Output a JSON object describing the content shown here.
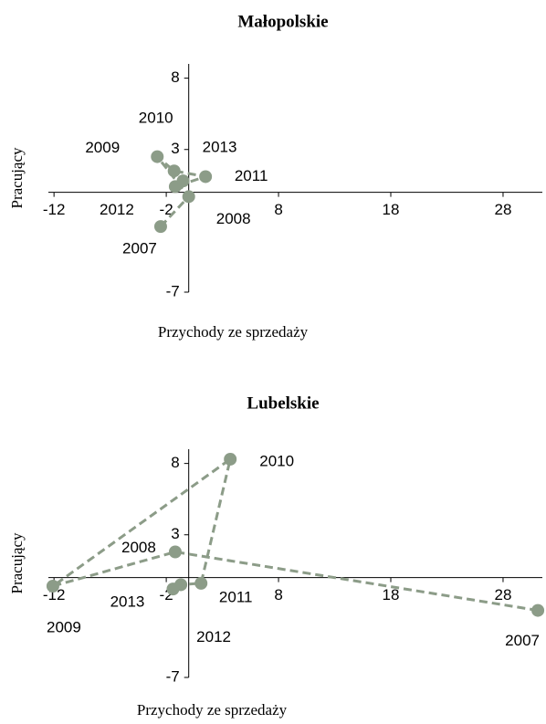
{
  "chart_data": [
    {
      "type": "scatter",
      "title": "Małopolskie",
      "x_label": "Przychody ze sprzedaży",
      "y_label": "Pracujący",
      "labels": [
        "2007",
        "2008",
        "2009",
        "2010",
        "2011",
        "2012",
        "2013"
      ],
      "x": [
        -2.5,
        0,
        -2.8,
        -1.3,
        1.5,
        -1.2,
        -0.5
      ],
      "values": [
        -2.4,
        -0.3,
        2.5,
        1.5,
        1.1,
        0.4,
        0.8
      ],
      "color": "#8c9c88",
      "xlim": [
        -12.5,
        31.5
      ],
      "ylim": [
        -7,
        9
      ],
      "xticks": [
        -12,
        -2,
        8,
        18,
        28
      ],
      "yticks": [
        8,
        3,
        -7
      ]
    },
    {
      "type": "scatter",
      "title": "Lubelskie",
      "x_label": "Przychody ze sprzedaży",
      "y_label": "Pracujący",
      "labels": [
        "2007",
        "2008",
        "2009",
        "2010",
        "2011",
        "2012",
        "2013"
      ],
      "x": [
        31.1,
        -1.2,
        -12.1,
        3.7,
        1.1,
        -0.7,
        -1.4
      ],
      "values": [
        -2.3,
        1.8,
        -0.6,
        8.3,
        -0.4,
        -0.5,
        -0.8
      ],
      "color": "#8c9c88",
      "xlim": [
        -12.5,
        31.5
      ],
      "ylim": [
        -7,
        9
      ],
      "xticks": [
        -12,
        -2,
        8,
        18,
        28
      ],
      "yticks": [
        8,
        3,
        -7
      ]
    }
  ]
}
